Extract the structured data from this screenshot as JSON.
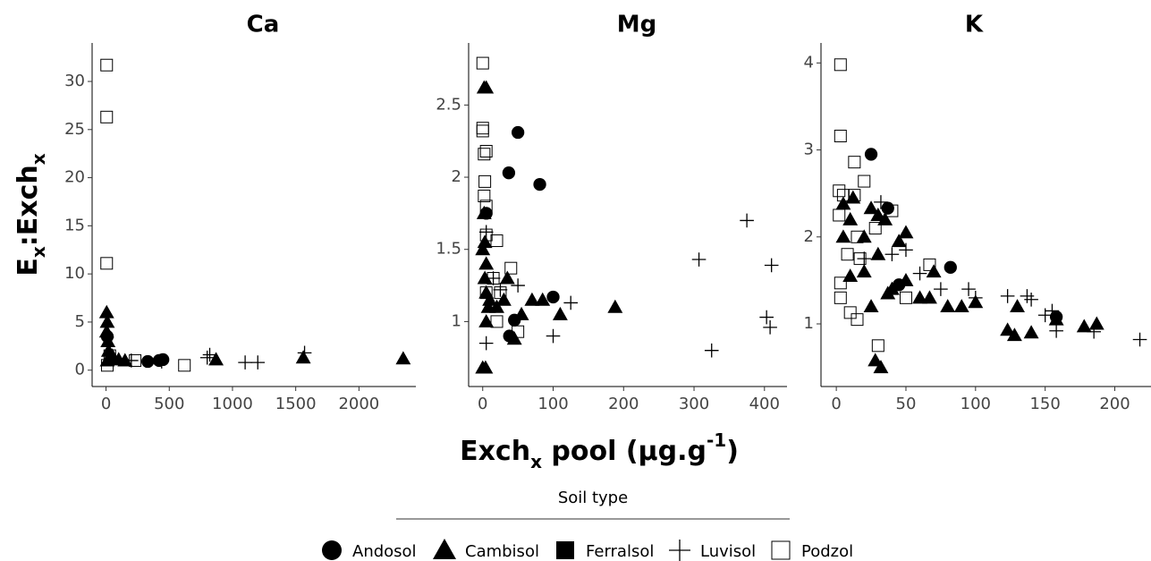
{
  "y_label": [
    "E",
    "x",
    ":Exch",
    "x"
  ],
  "x_label": [
    "Exch",
    "x",
    " pool (µg.g",
    "-1",
    ")"
  ],
  "legend_title": "Soil type",
  "chart_data": [
    {
      "type": "scatter",
      "title": "Ca",
      "xlim": [
        -110,
        2450
      ],
      "ylim": [
        -1.7,
        34
      ],
      "xticks": [
        0,
        500,
        1000,
        1500,
        2000
      ],
      "yticks": [
        0,
        5,
        10,
        15,
        20,
        25,
        30
      ],
      "series": [
        {
          "name": "Andosol",
          "color": "#000000",
          "marker": "circle",
          "x": [
            330,
            420,
            450,
            10
          ],
          "values": [
            0.9,
            1.0,
            1.1,
            3.5
          ]
        },
        {
          "name": "Cambisol",
          "color": "#000000",
          "marker": "triangle",
          "x": [
            5,
            10,
            5,
            15,
            20,
            50,
            100,
            150,
            870,
            1560,
            2350,
            10,
            30
          ],
          "values": [
            6,
            5,
            4,
            3,
            2,
            1.5,
            1.1,
            1.0,
            1.1,
            1.3,
            1.2,
            1,
            1.2
          ]
        },
        {
          "name": "Ferralsol",
          "color": "#000000",
          "marker": "square",
          "x": [],
          "values": []
        },
        {
          "name": "Luvisol",
          "color": "#000000",
          "marker": "plus",
          "x": [
            800,
            820,
            1100,
            1200,
            1570,
            200,
            60,
            440
          ],
          "values": [
            1.3,
            1.6,
            0.8,
            0.8,
            1.8,
            1.0,
            1.2,
            0.9
          ]
        },
        {
          "name": "Podzol",
          "color": "#000000",
          "marker": "open-square",
          "x": [
            5,
            5,
            5,
            10,
            230,
            620,
            30
          ],
          "values": [
            31.7,
            26.3,
            11.1,
            0.5,
            1.0,
            0.5,
            1.5
          ]
        }
      ]
    },
    {
      "type": "scatter",
      "title": "Mg",
      "xlim": [
        -20,
        432
      ],
      "ylim": [
        0.55,
        2.93
      ],
      "xticks": [
        0,
        100,
        200,
        300,
        400
      ],
      "yticks": [
        1,
        1.5,
        2,
        2.5
      ],
      "series": [
        {
          "name": "Andosol",
          "color": "#000000",
          "marker": "circle",
          "x": [
            50,
            37,
            81,
            45,
            100,
            38,
            5
          ],
          "values": [
            2.31,
            2.03,
            1.95,
            1.01,
            1.17,
            0.9,
            1.75
          ]
        },
        {
          "name": "Cambisol",
          "color": "#000000",
          "marker": "triangle",
          "x": [
            2,
            5,
            2,
            3,
            0,
            4,
            5,
            3,
            5,
            8,
            10,
            20,
            30,
            35,
            45,
            55,
            70,
            85,
            110,
            188,
            0,
            5
          ],
          "values": [
            2.62,
            2.62,
            1.75,
            1.55,
            0.68,
            0.68,
            1.4,
            1.3,
            1.2,
            1.1,
            1.15,
            1.1,
            1.15,
            1.3,
            0.88,
            1.05,
            1.15,
            1.15,
            1.05,
            1.1,
            1.5,
            1.0
          ]
        },
        {
          "name": "Ferralsol",
          "color": "#000000",
          "marker": "square",
          "x": [],
          "values": []
        },
        {
          "name": "Luvisol",
          "color": "#000000",
          "marker": "plus",
          "x": [
            5,
            375,
            307,
            410,
            403,
            408,
            325,
            125,
            100,
            5,
            50,
            25,
            15
          ],
          "values": [
            1.62,
            1.7,
            1.43,
            1.39,
            1.03,
            0.96,
            0.8,
            1.13,
            0.9,
            0.85,
            1.25,
            1.22,
            1.3
          ]
        },
        {
          "name": "Podzol",
          "color": "#000000",
          "marker": "open-square",
          "x": [
            0,
            0,
            0,
            2,
            5,
            3,
            2,
            5,
            5,
            20,
            40,
            15,
            20,
            50,
            5,
            25
          ],
          "values": [
            2.79,
            2.34,
            2.32,
            2.16,
            2.18,
            1.97,
            1.87,
            1.8,
            1.6,
            1.56,
            1.37,
            1.3,
            1.0,
            0.93,
            1.2,
            1.2
          ]
        }
      ]
    },
    {
      "type": "scatter",
      "title": "K",
      "xlim": [
        -11,
        226
      ],
      "ylim": [
        0.28,
        4.23
      ],
      "xticks": [
        0,
        50,
        100,
        150,
        200
      ],
      "yticks": [
        1,
        2,
        3,
        4
      ],
      "series": [
        {
          "name": "Andosol",
          "color": "#000000",
          "marker": "circle",
          "x": [
            25,
            37,
            82,
            158,
            45
          ],
          "values": [
            2.95,
            2.33,
            1.65,
            1.08,
            1.45
          ]
        },
        {
          "name": "Cambisol",
          "color": "#000000",
          "marker": "triangle",
          "x": [
            5,
            12,
            25,
            30,
            35,
            5,
            10,
            20,
            45,
            50,
            10,
            20,
            30,
            40,
            50,
            60,
            70,
            80,
            100,
            123,
            128,
            140,
            158,
            178,
            187,
            28,
            32,
            25,
            37,
            67,
            90,
            130
          ],
          "values": [
            2.38,
            2.45,
            2.33,
            2.25,
            2.2,
            2.0,
            2.2,
            2.0,
            1.95,
            2.05,
            1.55,
            1.6,
            1.8,
            1.4,
            1.5,
            1.3,
            1.6,
            1.2,
            1.25,
            0.93,
            0.87,
            0.9,
            1.05,
            0.97,
            1.0,
            0.58,
            0.5,
            1.2,
            1.35,
            1.3,
            1.2,
            1.2
          ]
        },
        {
          "name": "Ferralsol",
          "color": "#000000",
          "marker": "square",
          "x": [],
          "values": []
        },
        {
          "name": "Luvisol",
          "color": "#000000",
          "marker": "plus",
          "x": [
            32,
            50,
            60,
            75,
            95,
            100,
            123,
            137,
            140,
            150,
            155,
            158,
            185,
            218,
            40,
            20
          ],
          "values": [
            2.4,
            1.85,
            1.58,
            1.4,
            1.4,
            1.3,
            1.32,
            1.32,
            1.28,
            1.1,
            1.15,
            0.92,
            0.91,
            0.82,
            1.8,
            1.75
          ]
        },
        {
          "name": "Podzol",
          "color": "#000000",
          "marker": "open-square",
          "x": [
            3,
            3,
            13,
            20,
            13,
            2,
            5,
            2,
            40,
            15,
            8,
            17,
            3,
            3,
            10,
            15,
            30,
            50,
            67,
            28
          ],
          "values": [
            3.98,
            3.16,
            2.86,
            2.64,
            2.48,
            2.53,
            2.48,
            2.25,
            2.3,
            2.0,
            1.8,
            1.75,
            1.47,
            1.3,
            1.13,
            1.05,
            0.75,
            1.3,
            1.68,
            2.1
          ]
        }
      ]
    }
  ]
}
